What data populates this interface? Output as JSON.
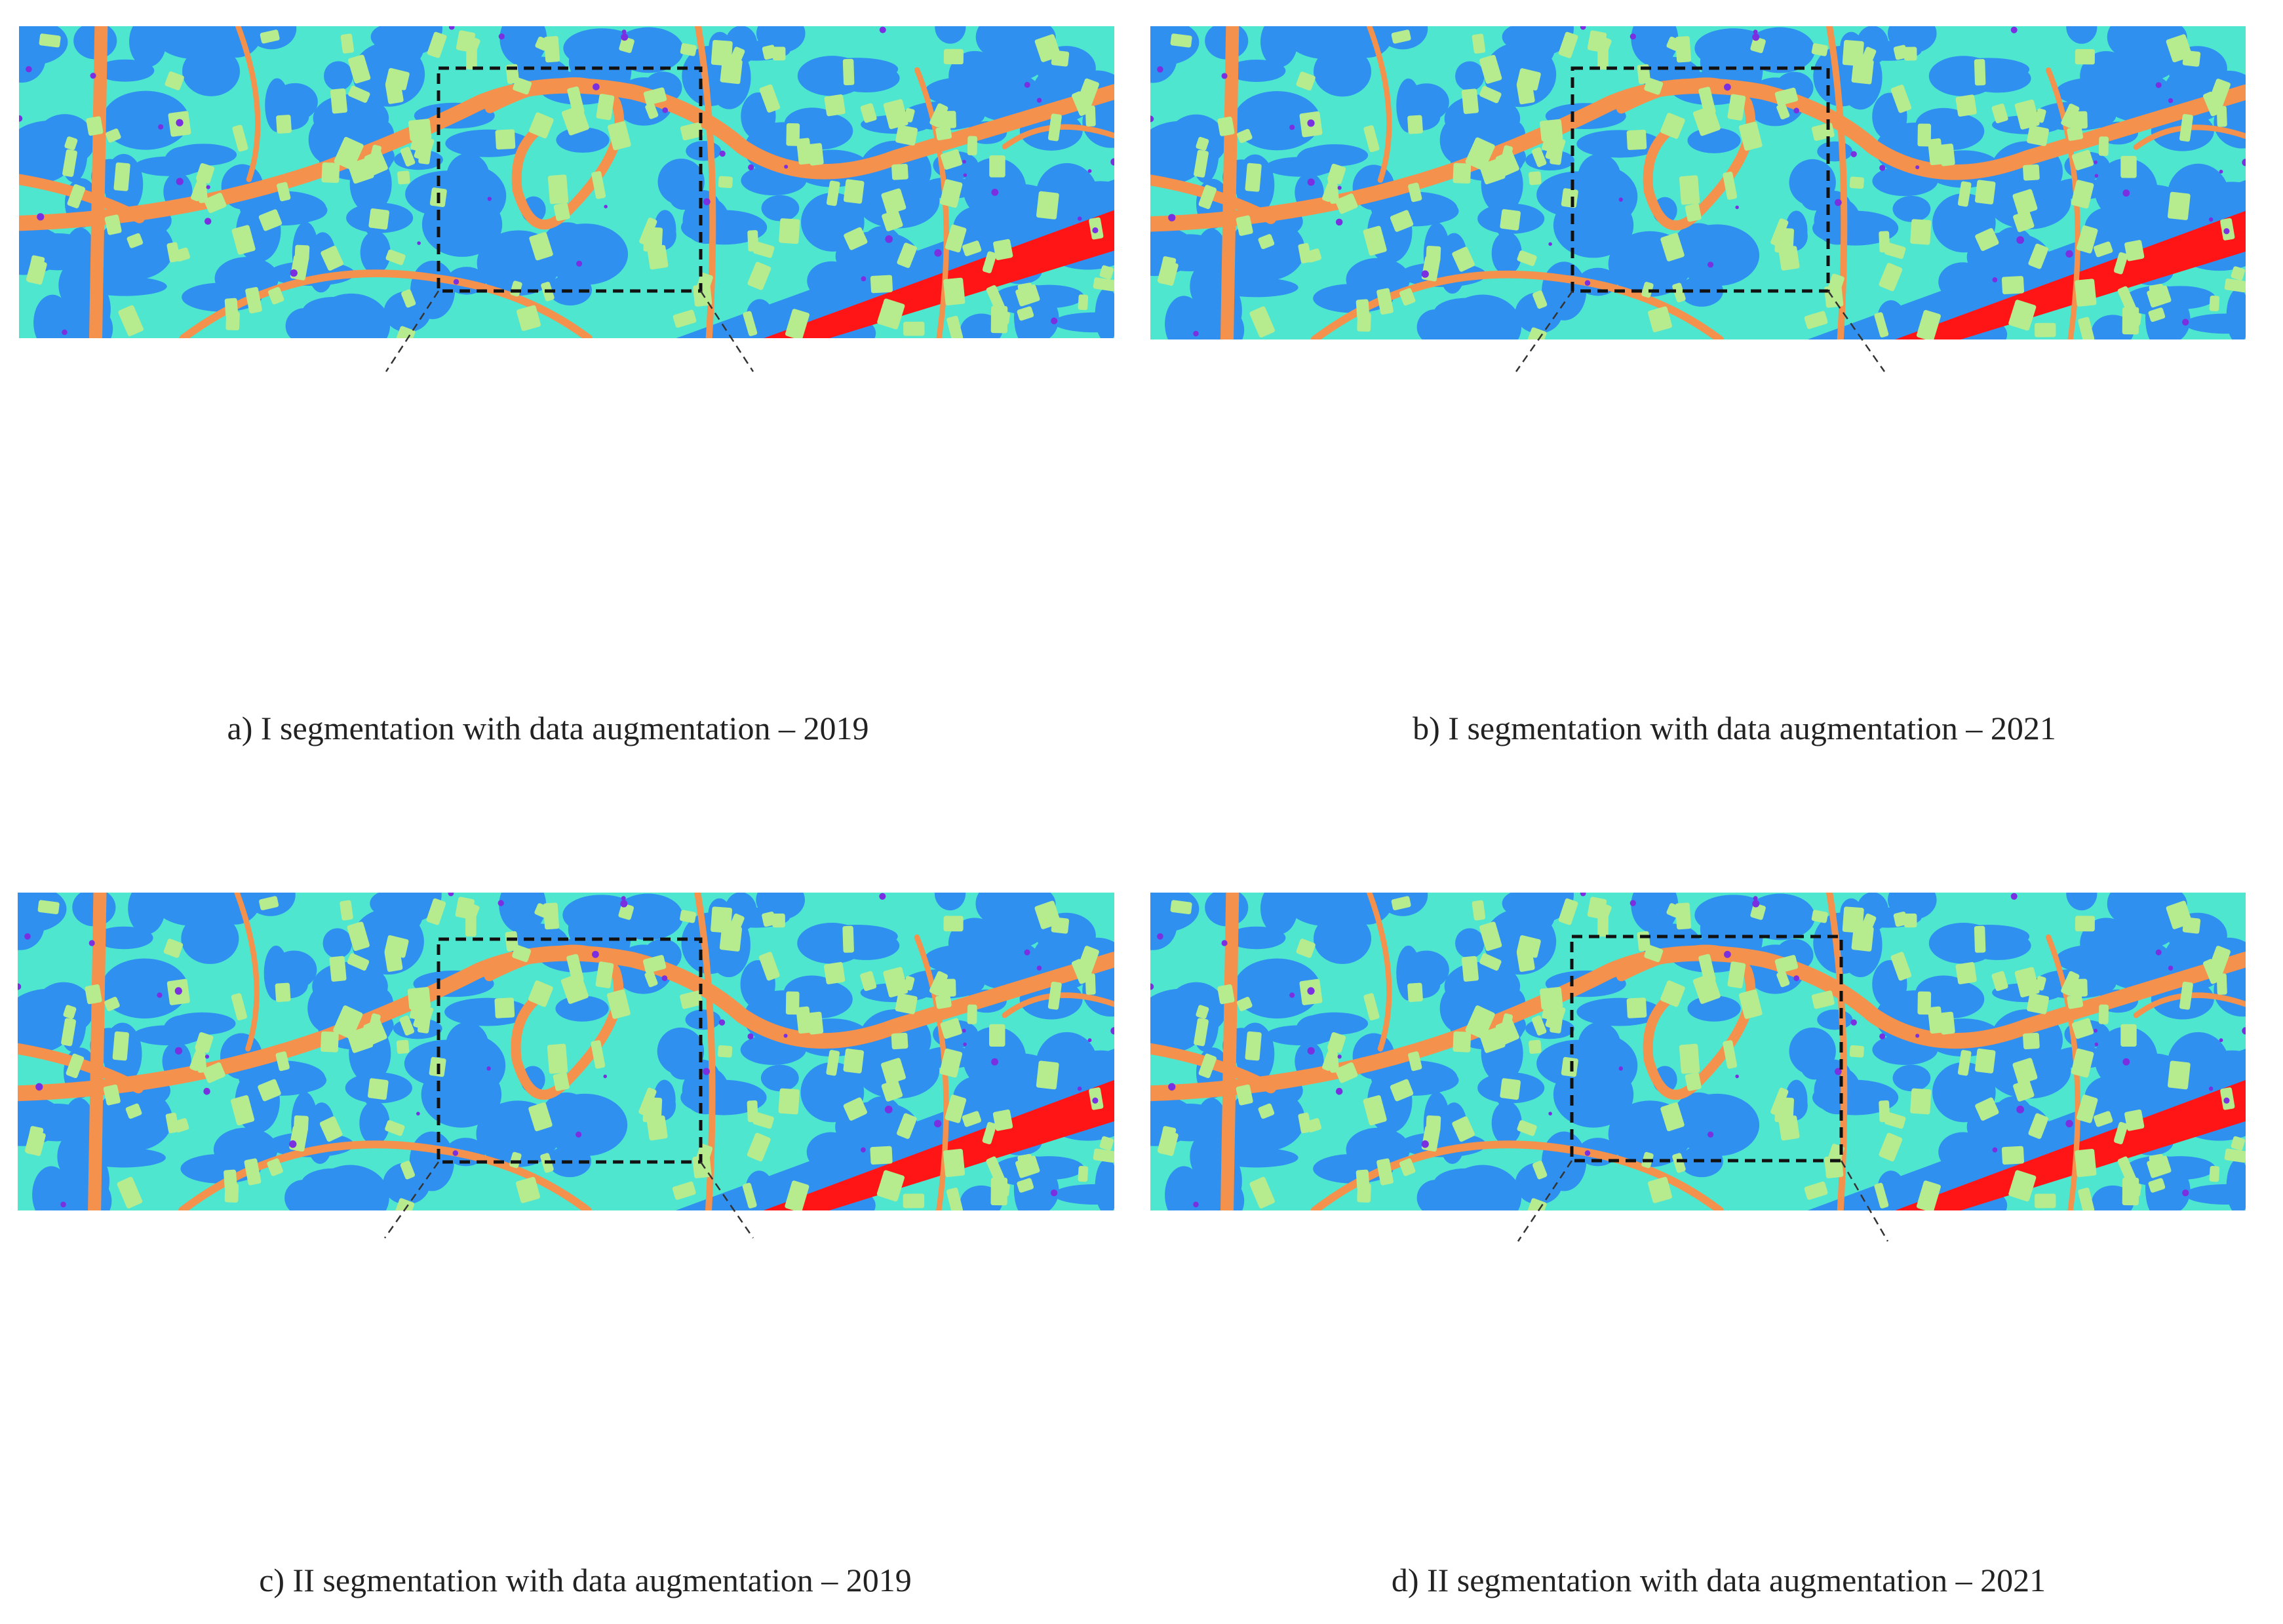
{
  "panels": [
    {
      "caption": "a) I segmentation with data augmentation – 2019"
    },
    {
      "caption": "b) I segmentation with data augmentation – 2021"
    },
    {
      "caption": "c) II segmentation with data augmentation – 2019"
    },
    {
      "caption": "d) II segmentation with data augmentation – 2021"
    }
  ]
}
